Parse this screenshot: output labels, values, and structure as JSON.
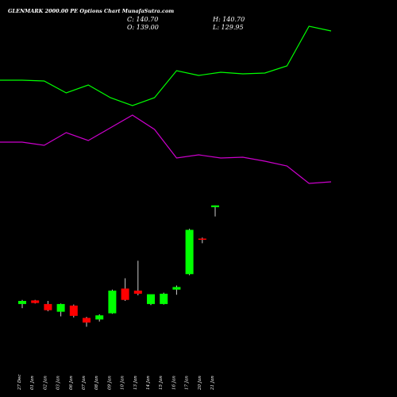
{
  "header": {
    "title": "GLENMARK 2000.00 PE Options  Chart MunafaSutra.com",
    "open": "O: 139.00",
    "high": "H: 140.70",
    "low": "L: 129.95",
    "close": "C: 140.70"
  },
  "chart_data": {
    "type": "candlestick",
    "title": "GLENMARK 2000.00 PE Options  Chart MunafaSutra.com",
    "xlabel": "",
    "ylabel": "",
    "grid": false,
    "categories": [
      "27 Dec",
      "01 Jan",
      "02 Jan",
      "03 Jan",
      "06 Jan",
      "07 Jan",
      "08 Jan",
      "09 Jan",
      "10 Jan",
      "13 Jan",
      "14 Jan",
      "15 Jan",
      "16 Jan",
      "17 Jan",
      "20 Jan",
      "21 Jan"
    ],
    "candles": [
      {
        "date": "27 Dec",
        "open": 45.0,
        "high": 49.0,
        "low": 41.0,
        "close": 48.0
      },
      {
        "date": "01 Jan",
        "open": 48.5,
        "high": 49.0,
        "low": 45.5,
        "close": 46.0
      },
      {
        "date": "02 Jan",
        "open": 45.0,
        "high": 48.0,
        "low": 38.0,
        "close": 39.0
      },
      {
        "date": "03 Jan",
        "open": 37.5,
        "high": 45.5,
        "low": 33.0,
        "close": 45.0
      },
      {
        "date": "06 Jan",
        "open": 43.5,
        "high": 44.5,
        "low": 32.0,
        "close": 33.5
      },
      {
        "date": "07 Jan",
        "open": 31.5,
        "high": 32.5,
        "low": 23.0,
        "close": 27.0
      },
      {
        "date": "08 Jan",
        "open": 30.0,
        "high": 35.0,
        "low": 28.0,
        "close": 34.0
      },
      {
        "date": "09 Jan",
        "open": 36.0,
        "high": 59.0,
        "low": 35.5,
        "close": 58.0
      },
      {
        "date": "10 Jan",
        "open": 60.0,
        "high": 70.0,
        "low": 48.0,
        "close": 49.0
      },
      {
        "date": "13 Jan",
        "open": 58.0,
        "high": 87.0,
        "low": 53.5,
        "close": 55.0
      },
      {
        "date": "14 Jan",
        "open": 45.0,
        "high": 54.0,
        "low": 44.0,
        "close": 54.5
      },
      {
        "date": "15 Jan",
        "open": 45.0,
        "high": 56.0,
        "low": 44.5,
        "close": 55.0
      },
      {
        "date": "16 Jan",
        "open": 59.0,
        "high": 63.0,
        "low": 54.0,
        "close": 61.5
      },
      {
        "date": "17 Jan",
        "open": 74.0,
        "high": 118.0,
        "low": 73.0,
        "close": 117.0
      },
      {
        "date": "20 Jan",
        "open": 108.5,
        "high": 109.5,
        "low": 104.0,
        "close": 107.5
      },
      {
        "date": "21 Jan",
        "open": 139.0,
        "high": 140.7,
        "low": 129.95,
        "close": 140.7
      }
    ],
    "series": [
      {
        "color": "#00ff00",
        "values": [
          75,
          75,
          74.5,
          67,
          72,
          64,
          59,
          64,
          81,
          78,
          80,
          79,
          79.5,
          84,
          109,
          106
        ]
      },
      {
        "color": "#cc00cc",
        "values": [
          36,
          36,
          34,
          42,
          37,
          45,
          53,
          44,
          26,
          28,
          26,
          26.5,
          24,
          21,
          10,
          11
        ]
      }
    ],
    "colors": {
      "up": "#00ff00",
      "down": "#ff0000",
      "wick": "#cccccc",
      "background": "#000000"
    }
  }
}
